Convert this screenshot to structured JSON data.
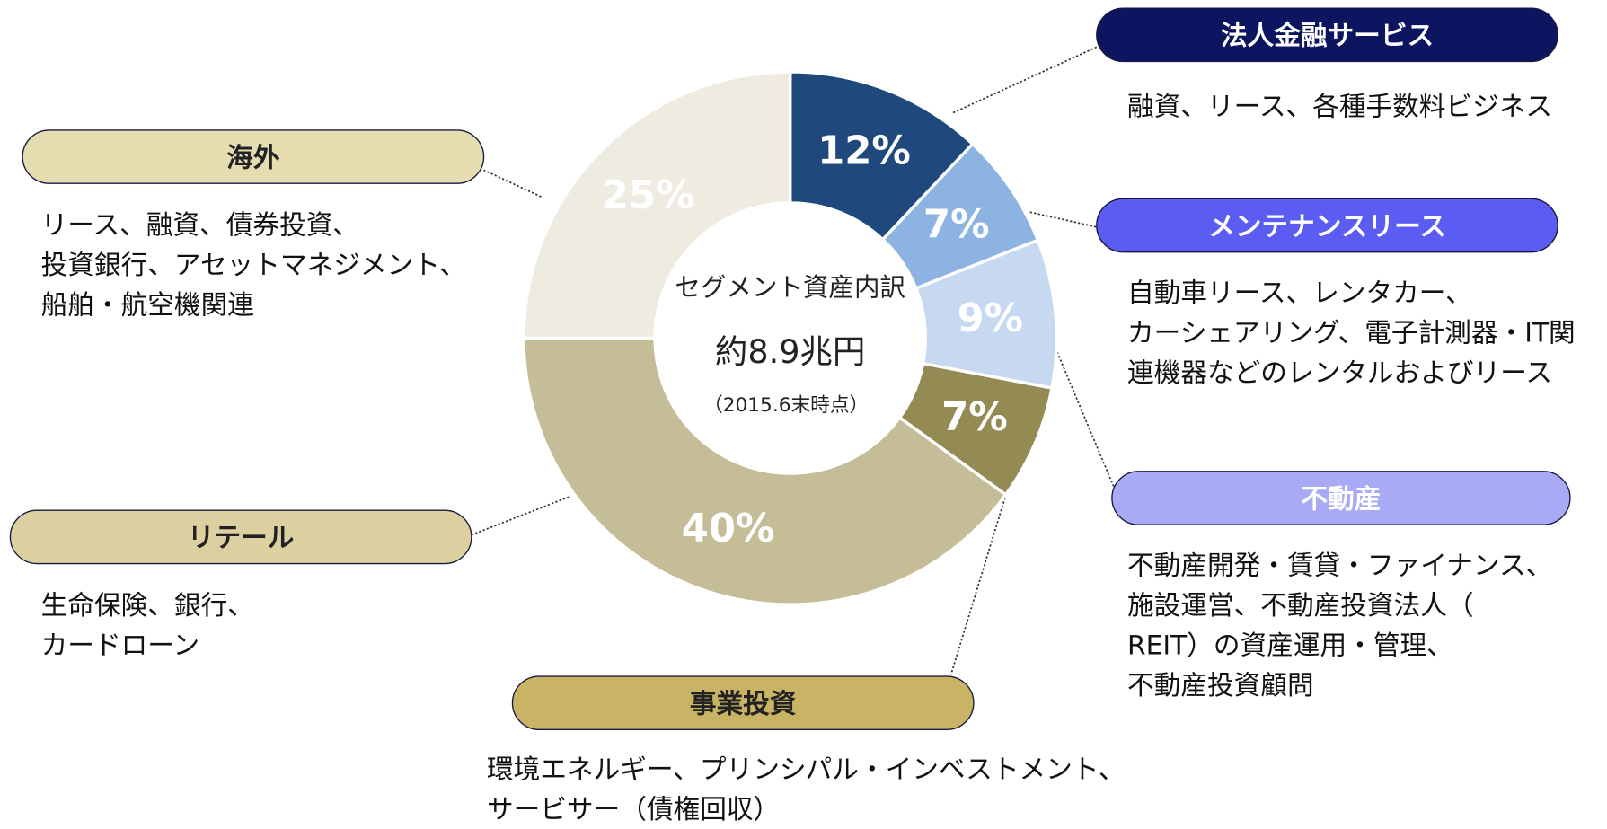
{
  "chart_data": {
    "type": "donut",
    "center_text": [
      "セグメント資産内訳",
      "約8.9兆円",
      "（2015.6末時点）"
    ],
    "categories": [
      "法人金融サービス",
      "メンテナンスリース",
      "不動産",
      "事業投資",
      "リテール",
      "海外"
    ],
    "values": [
      12,
      7,
      9,
      7,
      40,
      25
    ],
    "value_labels": [
      "12%",
      "7%",
      "9%",
      "7%",
      "40%",
      "25%"
    ],
    "colors": [
      "#1f497d",
      "#8db3e2",
      "#c6d9f1",
      "#948a54",
      "#c4bd97",
      "#eeece1"
    ],
    "label_colors": [
      "#0d1560",
      "#5b5cf2",
      "#a9aaf5",
      "#c9b466",
      "#ddd0a0",
      "#e5dcb0"
    ],
    "label_text_colors": [
      "#ffffff",
      "#ffffff",
      "#ffffff",
      "#222222",
      "#222222",
      "#222222"
    ],
    "descriptions": [
      [
        "融資、リース、各種手数料ビジネス"
      ],
      [
        "自動車リース、レンタカー、",
        "カーシェアリング、電子計測器・IT関",
        "連機器などのレンタルおよびリース"
      ],
      [
        "不動産開発・賃貸・ファイナンス、",
        "施設運営、不動産投資法人（",
        "REIT）の資産運用・管理、",
        "不動産投資顧問"
      ],
      [
        "環境エネルギー、プリンシパル・インベストメント、",
        "サービサー（債権回収）"
      ],
      [
        "生命保険、銀行、",
        "カードローン"
      ],
      [
        "リース、融資、債券投資、",
        "投資銀行、アセットマネジメント、",
        "船舶・航空機関連"
      ]
    ]
  }
}
